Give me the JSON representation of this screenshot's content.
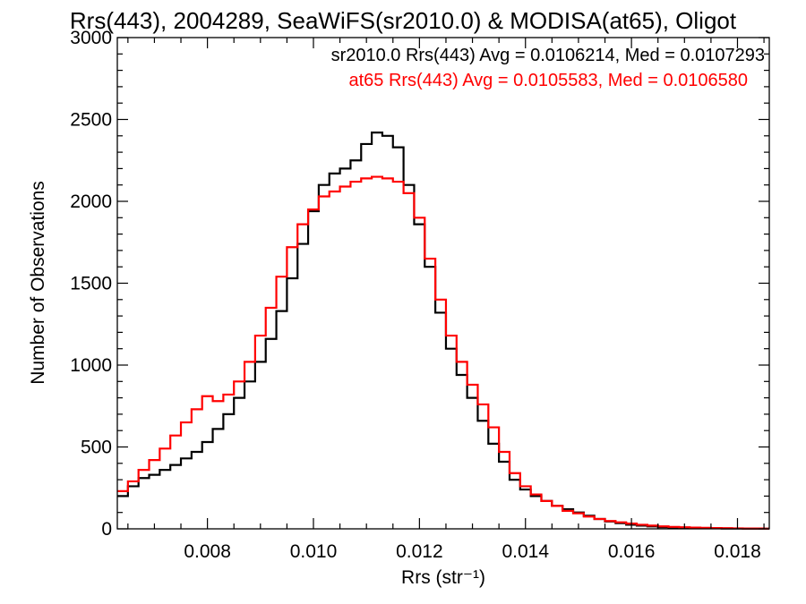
{
  "chart_data": {
    "type": "line",
    "step": true,
    "title": "Rrs(443), 2004289, SeaWiFS(sr2010.0) & MODISA(at65), Oligot",
    "xlabel": "Rrs (str⁻¹)",
    "ylabel": "Number of Observations",
    "xlim": [
      0.0063,
      0.0186
    ],
    "ylim": [
      0,
      3000
    ],
    "xticks": [
      0.008,
      0.01,
      0.012,
      0.014,
      0.016,
      0.018
    ],
    "xtick_labels": [
      "0.008",
      "0.010",
      "0.012",
      "0.014",
      "0.016",
      "0.018"
    ],
    "yticks": [
      0,
      500,
      1000,
      1500,
      2000,
      2500,
      3000
    ],
    "ytick_labels": [
      "0",
      "500",
      "1000",
      "1500",
      "2000",
      "2500",
      "3000"
    ],
    "legend": [
      "sr2010.0 Rrs(443) Avg = 0.0106214, Med = 0.0107293",
      "at65 Rrs(443) Avg = 0.0105583, Med = 0.0106580"
    ],
    "legend_placement": "top-right",
    "series": [
      {
        "name": "sr2010.0",
        "color": "#000000",
        "x": [
          0.0063,
          0.0065,
          0.0067,
          0.0069,
          0.0071,
          0.0073,
          0.0075,
          0.0077,
          0.0079,
          0.0081,
          0.0083,
          0.0085,
          0.0087,
          0.0089,
          0.0091,
          0.0093,
          0.0095,
          0.0097,
          0.0099,
          0.0101,
          0.0103,
          0.0105,
          0.0107,
          0.0109,
          0.0111,
          0.0113,
          0.0115,
          0.0117,
          0.0119,
          0.0121,
          0.0123,
          0.0125,
          0.0127,
          0.0129,
          0.0131,
          0.0133,
          0.0135,
          0.0137,
          0.0139,
          0.0141,
          0.0143,
          0.0145,
          0.0147,
          0.0149,
          0.0151,
          0.0153,
          0.0155,
          0.0157,
          0.0159,
          0.0161,
          0.0163,
          0.0165,
          0.0167,
          0.0169,
          0.0171,
          0.0173,
          0.0175,
          0.0177,
          0.0179,
          0.0181,
          0.0183,
          0.0185
        ],
        "y": [
          200,
          260,
          310,
          330,
          360,
          390,
          430,
          470,
          530,
          610,
          700,
          800,
          900,
          1020,
          1160,
          1330,
          1530,
          1740,
          1940,
          2100,
          2170,
          2200,
          2250,
          2350,
          2420,
          2400,
          2330,
          2100,
          1860,
          1600,
          1320,
          1100,
          940,
          800,
          660,
          520,
          410,
          300,
          240,
          200,
          170,
          140,
          120,
          100,
          80,
          60,
          45,
          35,
          25,
          20,
          15,
          10,
          8,
          6,
          5,
          4,
          3,
          2,
          2,
          1,
          1,
          1
        ]
      },
      {
        "name": "at65",
        "color": "#ff0000",
        "x": [
          0.0063,
          0.0065,
          0.0067,
          0.0069,
          0.0071,
          0.0073,
          0.0075,
          0.0077,
          0.0079,
          0.0081,
          0.0083,
          0.0085,
          0.0087,
          0.0089,
          0.0091,
          0.0093,
          0.0095,
          0.0097,
          0.0099,
          0.0101,
          0.0103,
          0.0105,
          0.0107,
          0.0109,
          0.0111,
          0.0113,
          0.0115,
          0.0117,
          0.0119,
          0.0121,
          0.0123,
          0.0125,
          0.0127,
          0.0129,
          0.0131,
          0.0133,
          0.0135,
          0.0137,
          0.0139,
          0.0141,
          0.0143,
          0.0145,
          0.0147,
          0.0149,
          0.0151,
          0.0153,
          0.0155,
          0.0157,
          0.0159,
          0.0161,
          0.0163,
          0.0165,
          0.0167,
          0.0169,
          0.0171,
          0.0173,
          0.0175,
          0.0177,
          0.0179,
          0.0181,
          0.0183,
          0.0185
        ],
        "y": [
          230,
          290,
          360,
          420,
          490,
          570,
          650,
          730,
          810,
          780,
          820,
          900,
          1020,
          1180,
          1350,
          1540,
          1720,
          1860,
          1950,
          2030,
          2060,
          2090,
          2120,
          2140,
          2150,
          2140,
          2120,
          2050,
          1900,
          1650,
          1400,
          1180,
          1020,
          880,
          760,
          620,
          470,
          340,
          260,
          210,
          170,
          140,
          110,
          95,
          75,
          60,
          48,
          40,
          32,
          25,
          20,
          15,
          12,
          10,
          8,
          6,
          5,
          4,
          3,
          2,
          2,
          1
        ]
      }
    ]
  }
}
